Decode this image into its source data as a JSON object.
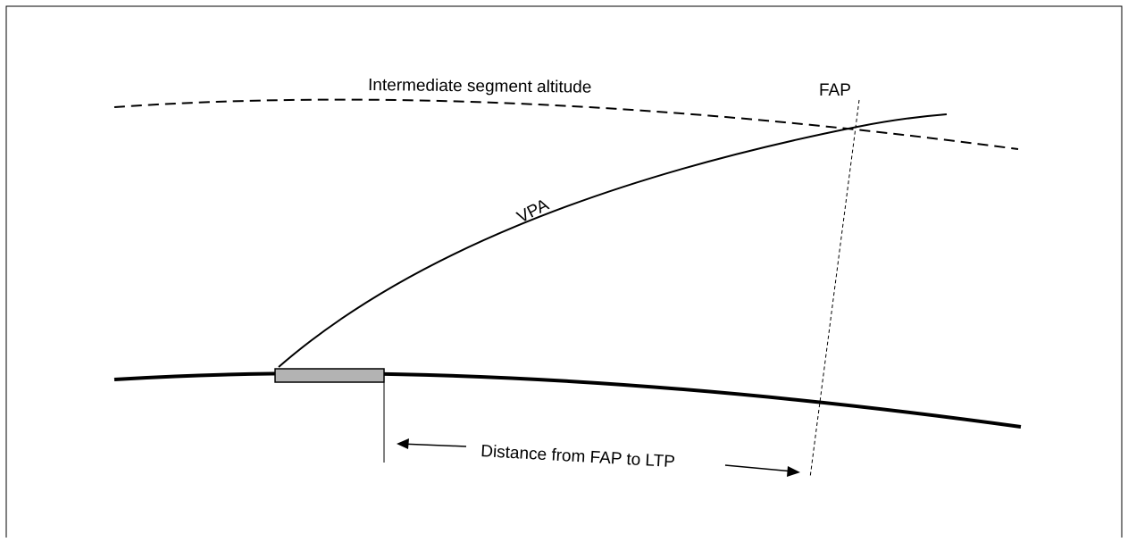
{
  "labels": {
    "intermediate_altitude": "Intermediate segment altitude",
    "fap": "FAP",
    "vpa": "VPA",
    "distance": "Distance from FAP to LTP"
  },
  "colors": {
    "line": "#000000",
    "runway_fill": "#b3b3b3",
    "background": "#ffffff"
  }
}
